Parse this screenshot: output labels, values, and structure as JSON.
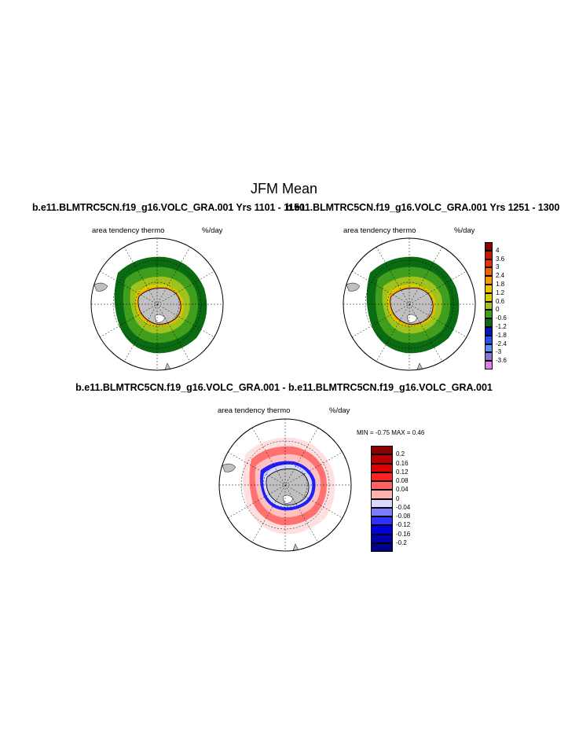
{
  "title": "JFM Mean",
  "panels": [
    {
      "case_title": "b.e11.BLMTRC5CN.f19_g16.VOLC_GRA.001  Yrs 1101 - 1150",
      "variable": "area tendency thermo",
      "units": "%/day"
    },
    {
      "case_title": "b.e11.BLMTRC5CN.f19_g16.VOLC_GRA.001  Yrs 1251 - 1300",
      "variable": "area tendency thermo",
      "units": "%/day"
    }
  ],
  "difference": {
    "title": "b.e11.BLMTRC5CN.f19_g16.VOLC_GRA.001 - b.e11.BLMTRC5CN.f19_g16.VOLC_GRA.001",
    "variable": "area tendency thermo",
    "units": "%/day",
    "stats_text": "MIN =  -0.75 MAX =   0.46",
    "min": -0.75,
    "max": 0.46
  },
  "colorbar_main": {
    "labels": [
      "4",
      "3.6",
      "3",
      "2.4",
      "1.8",
      "1.2",
      "0.6",
      "0",
      "-0.6",
      "-1.2",
      "-1.8",
      "-2.4",
      "-3",
      "-3.6"
    ],
    "colors": [
      "#8b0000",
      "#c21a00",
      "#e83000",
      "#f26400",
      "#f79a00",
      "#f5c100",
      "#d7cf00",
      "#9fc21c",
      "#3f9e1e",
      "#0b6b12",
      "#0018b8",
      "#1f55e6",
      "#5c92f2",
      "#8a72d6",
      "#e07fe0"
    ]
  },
  "colorbar_diff": {
    "labels": [
      "0.2",
      "0.16",
      "0.12",
      "0.08",
      "0.04",
      "0",
      "-0.04",
      "-0.08",
      "-0.12",
      "-0.16",
      "-0.2"
    ],
    "colors": [
      "#8b0000",
      "#b80000",
      "#e00000",
      "#ff2020",
      "#ff6060",
      "#ffb0b0",
      "#d8d8ff",
      "#7c7cff",
      "#2f2fff",
      "#0000e0",
      "#0000b0",
      "#00008b"
    ]
  }
}
